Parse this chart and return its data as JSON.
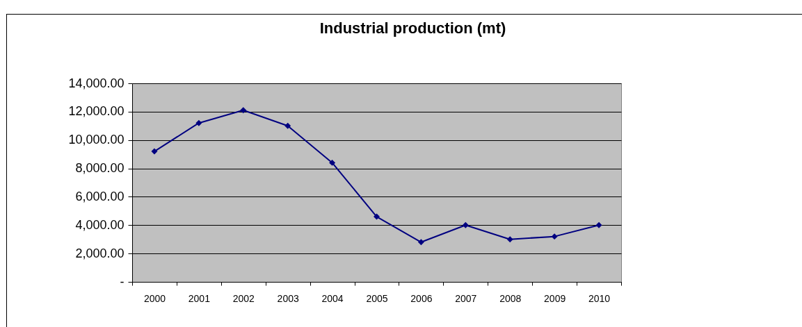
{
  "chart_data": {
    "type": "line",
    "title": "Industrial production (mt)",
    "categories": [
      "2000",
      "2001",
      "2002",
      "2003",
      "2004",
      "2005",
      "2006",
      "2007",
      "2008",
      "2009",
      "2010"
    ],
    "series": [
      {
        "color": "#000080",
        "values": [
          9200,
          11200,
          12100,
          11000,
          8400,
          4600,
          2800,
          4000,
          3000,
          3200,
          4000
        ]
      }
    ],
    "ylim": [
      0,
      14000
    ],
    "yticks": [
      {
        "value": 0,
        "label": "-"
      },
      {
        "value": 2000,
        "label": "2,000.00"
      },
      {
        "value": 4000,
        "label": "4,000.00"
      },
      {
        "value": 6000,
        "label": "6,000.00"
      },
      {
        "value": 8000,
        "label": "8,000.00"
      },
      {
        "value": 10000,
        "label": "10,000.00"
      },
      {
        "value": 12000,
        "label": "12,000.00"
      },
      {
        "value": 14000,
        "label": "14,000.00"
      }
    ],
    "grid": "y",
    "marker": "diamond",
    "line_style": "solid"
  }
}
